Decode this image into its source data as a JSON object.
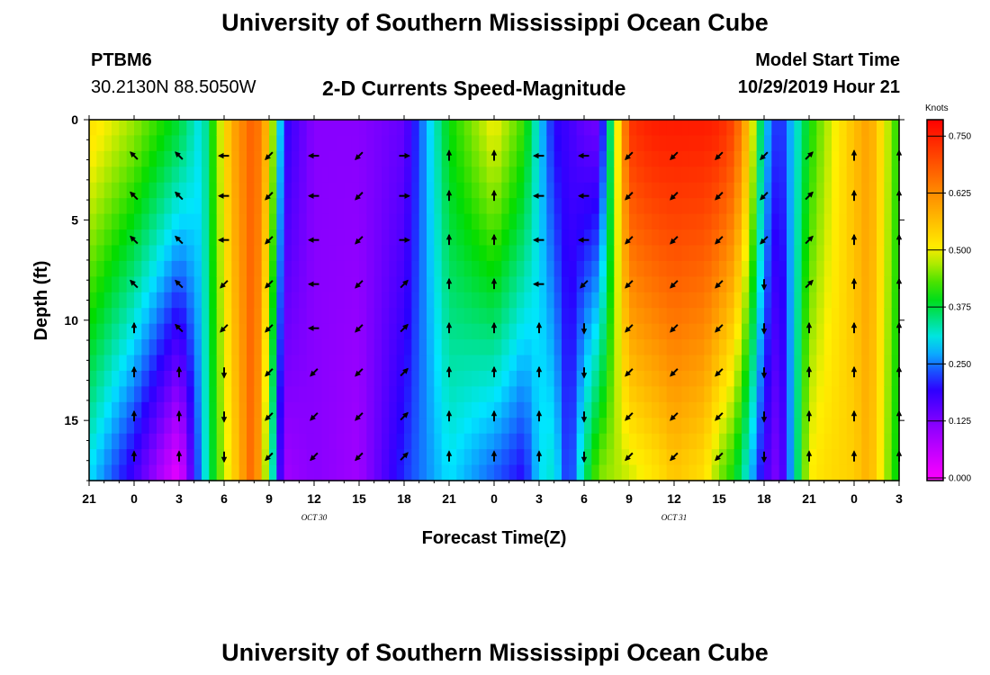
{
  "page": {
    "title_top": "University of Southern Mississippi Ocean Cube",
    "title_bottom": "University of Southern Mississippi Ocean Cube",
    "station_id": "PTBM6",
    "station_coords": "30.2130N 88.5050W",
    "plot_title": "2-D Currents Speed-Magnitude",
    "model_start_label": "Model Start Time",
    "model_start_value": "10/29/2019 Hour 21"
  },
  "chart_data": {
    "type": "heatmap",
    "title": "2-D Currents Speed-Magnitude",
    "xlabel": "Forecast Time(Z)",
    "ylabel": "Depth (ft)",
    "x_tick_labels": [
      "21",
      "0",
      "3",
      "6",
      "9",
      "12",
      "15",
      "18",
      "21",
      "0",
      "3",
      "6",
      "9",
      "12",
      "15",
      "18",
      "21",
      "0",
      "3"
    ],
    "x_hours": [
      0,
      54
    ],
    "date_labels": [
      {
        "text": "OCT 30",
        "hour": 15
      },
      {
        "text": "OCT 31",
        "hour": 39
      }
    ],
    "y_ticks": [
      0,
      5,
      10,
      15
    ],
    "ylim": [
      0,
      18
    ],
    "y_inverted": true,
    "colorbar": {
      "label": "Knots",
      "ticks": [
        "0.750",
        "0.625",
        "0.500",
        "0.375",
        "0.250",
        "0.125",
        "0.000"
      ],
      "range": [
        0,
        0.78
      ]
    },
    "depth_levels_ft": [
      0.4,
      1.2,
      2.0,
      2.8,
      3.6,
      4.4,
      5.2,
      6.0,
      6.8,
      7.6,
      8.4,
      9.2,
      10.0,
      10.8,
      11.6,
      12.4,
      13.2,
      14.0,
      14.8,
      15.6,
      16.4,
      17.2,
      17.8
    ],
    "speed_profile": {
      "hours": [
        0,
        3,
        6,
        7.5,
        8.5,
        9.5,
        11,
        12,
        13,
        15,
        18,
        21,
        24,
        27,
        29,
        30,
        31,
        32,
        33,
        34,
        36,
        37,
        38,
        39,
        41,
        42,
        43,
        44,
        45,
        46,
        48,
        49,
        51,
        52,
        54
      ],
      "surface": [
        0.52,
        0.46,
        0.38,
        0.3,
        0.45,
        0.58,
        0.68,
        0.55,
        0.2,
        0.12,
        0.12,
        0.15,
        0.4,
        0.5,
        0.42,
        0.3,
        0.2,
        0.18,
        0.15,
        0.14,
        0.72,
        0.74,
        0.75,
        0.75,
        0.75,
        0.74,
        0.7,
        0.55,
        0.3,
        0.2,
        0.4,
        0.46,
        0.56,
        0.6,
        0.4
      ],
      "bottom": [
        0.3,
        0.18,
        0.02,
        0.28,
        0.42,
        0.52,
        0.68,
        0.4,
        0.1,
        0.12,
        0.1,
        0.22,
        0.3,
        0.24,
        0.2,
        0.3,
        0.32,
        0.2,
        0.35,
        0.45,
        0.48,
        0.5,
        0.52,
        0.55,
        0.52,
        0.45,
        0.4,
        0.3,
        0.18,
        0.12,
        0.5,
        0.52,
        0.54,
        0.58,
        0.38
      ]
    },
    "vector_hours": [
      3,
      6,
      9,
      12,
      15,
      18,
      21,
      24,
      27,
      30,
      33,
      36,
      39,
      42,
      45,
      48,
      51,
      54
    ],
    "vector_depths_ft": [
      1.8,
      3.8,
      6.0,
      8.2,
      10.4,
      12.6,
      14.8,
      16.8
    ],
    "vector_direction_deg": [
      [
        315,
        315,
        315,
        315,
        0,
        0,
        0,
        0
      ],
      [
        315,
        315,
        315,
        315,
        315,
        0,
        0,
        0
      ],
      [
        270,
        270,
        270,
        225,
        225,
        180,
        180,
        180
      ],
      [
        225,
        225,
        225,
        225,
        225,
        225,
        225,
        225
      ],
      [
        270,
        270,
        270,
        270,
        270,
        225,
        225,
        225
      ],
      [
        225,
        225,
        225,
        225,
        225,
        225,
        225,
        225
      ],
      [
        90,
        90,
        90,
        45,
        45,
        45,
        45,
        45
      ],
      [
        0,
        0,
        0,
        0,
        0,
        0,
        0,
        0
      ],
      [
        0,
        0,
        0,
        0,
        0,
        0,
        0,
        0
      ],
      [
        270,
        270,
        270,
        270,
        0,
        0,
        0,
        0
      ],
      [
        270,
        270,
        270,
        225,
        180,
        180,
        180,
        180
      ],
      [
        225,
        225,
        225,
        225,
        225,
        225,
        225,
        225
      ],
      [
        225,
        225,
        225,
        225,
        225,
        225,
        225,
        225
      ],
      [
        225,
        225,
        225,
        225,
        225,
        225,
        225,
        225
      ],
      [
        225,
        225,
        225,
        180,
        180,
        180,
        180,
        180
      ],
      [
        45,
        45,
        45,
        45,
        0,
        0,
        0,
        0
      ],
      [
        0,
        0,
        0,
        0,
        0,
        0,
        0,
        0
      ],
      [
        0,
        0,
        0,
        0,
        0,
        0,
        0,
        0
      ]
    ]
  }
}
